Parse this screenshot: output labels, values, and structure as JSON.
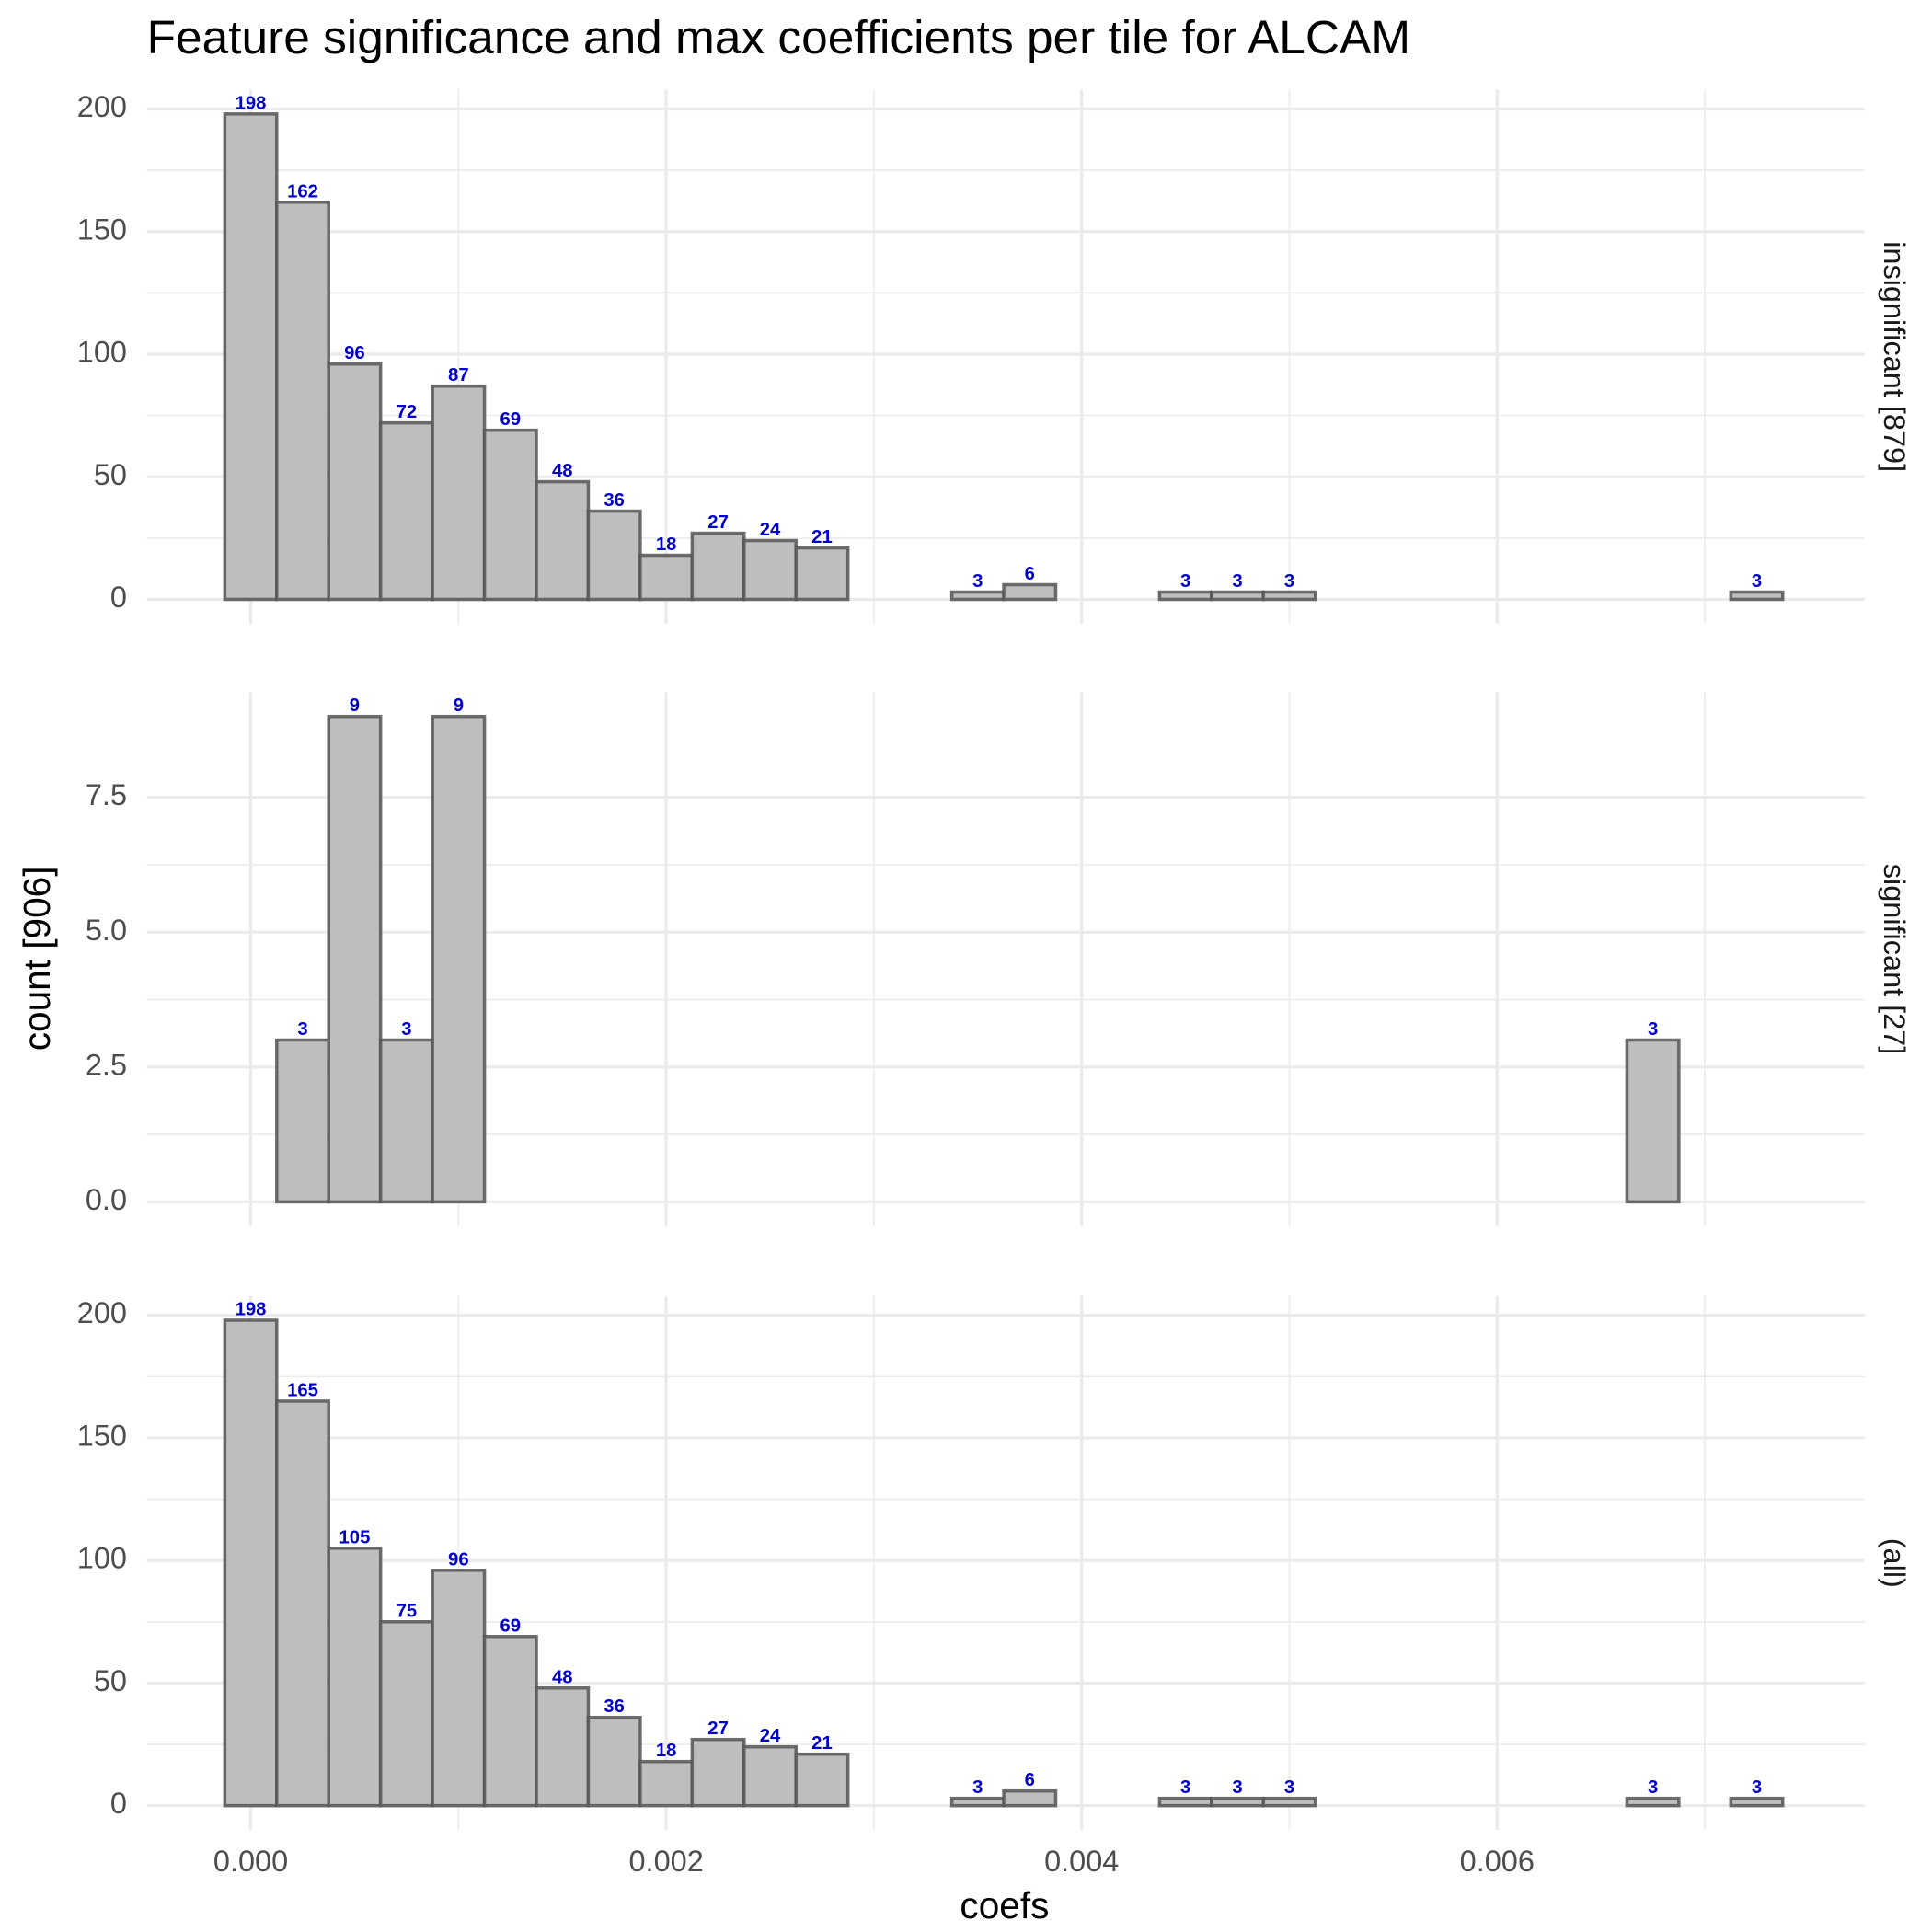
{
  "chart_data": {
    "type": "histogram",
    "title": "Feature significance and max coefficients per tile for ALCAM",
    "x_label": "coefs",
    "y_label": "count [906]",
    "fill_color": "#bebebe",
    "edge_color": "#555555",
    "label_color": "#0000cc",
    "grid": true,
    "bins": [
      -0.000125,
      0.000125,
      0.000375,
      0.000625,
      0.000875,
      0.001125,
      0.001375,
      0.001625,
      0.001875,
      0.002125,
      0.002375,
      0.002625,
      0.002875,
      0.003125,
      0.003375,
      0.003625,
      0.003875,
      0.004125,
      0.004375,
      0.004625,
      0.004875,
      0.005125,
      0.005375,
      0.005625,
      0.005875,
      0.006125,
      0.006375,
      0.006625,
      0.006875,
      0.007125,
      0.007375
    ],
    "xlim": [
      -0.0005,
      0.00777
    ],
    "xticks": [
      {
        "value": 0,
        "label": "0.000"
      },
      {
        "value": 0.002,
        "label": "0.002"
      },
      {
        "value": 0.004,
        "label": "0.004"
      },
      {
        "value": 0.006,
        "label": "0.006"
      }
    ],
    "facets": [
      {
        "label": "insignificant [879]",
        "values": [
          198,
          162,
          96,
          72,
          87,
          69,
          48,
          36,
          18,
          27,
          24,
          21,
          0,
          0,
          3,
          6,
          0,
          0,
          3,
          3,
          3,
          0,
          0,
          0,
          0,
          0,
          0,
          0,
          0,
          3
        ],
        "ylim": [
          -9.9,
          207.9
        ],
        "yticks": [
          0,
          50,
          100,
          150,
          200
        ]
      },
      {
        "label": "significant [27]",
        "values": [
          0,
          3,
          9,
          3,
          9,
          0,
          0,
          0,
          0,
          0,
          0,
          0,
          0,
          0,
          0,
          0,
          0,
          0,
          0,
          0,
          0,
          0,
          0,
          0,
          0,
          0,
          0,
          3,
          0,
          0
        ],
        "ylim": [
          -0.45,
          9.45
        ],
        "yticks": [
          {
            "value": 0,
            "label": "0.0"
          },
          2.5,
          {
            "value": 5,
            "label": "5.0"
          },
          7.5
        ]
      },
      {
        "label": "(all)",
        "values": [
          198,
          165,
          105,
          75,
          96,
          69,
          48,
          36,
          18,
          27,
          24,
          21,
          0,
          0,
          3,
          6,
          0,
          0,
          3,
          3,
          3,
          0,
          0,
          0,
          0,
          0,
          0,
          3,
          0,
          3
        ],
        "ylim": [
          -9.9,
          207.9
        ],
        "yticks": [
          0,
          50,
          100,
          150,
          200
        ]
      }
    ]
  }
}
